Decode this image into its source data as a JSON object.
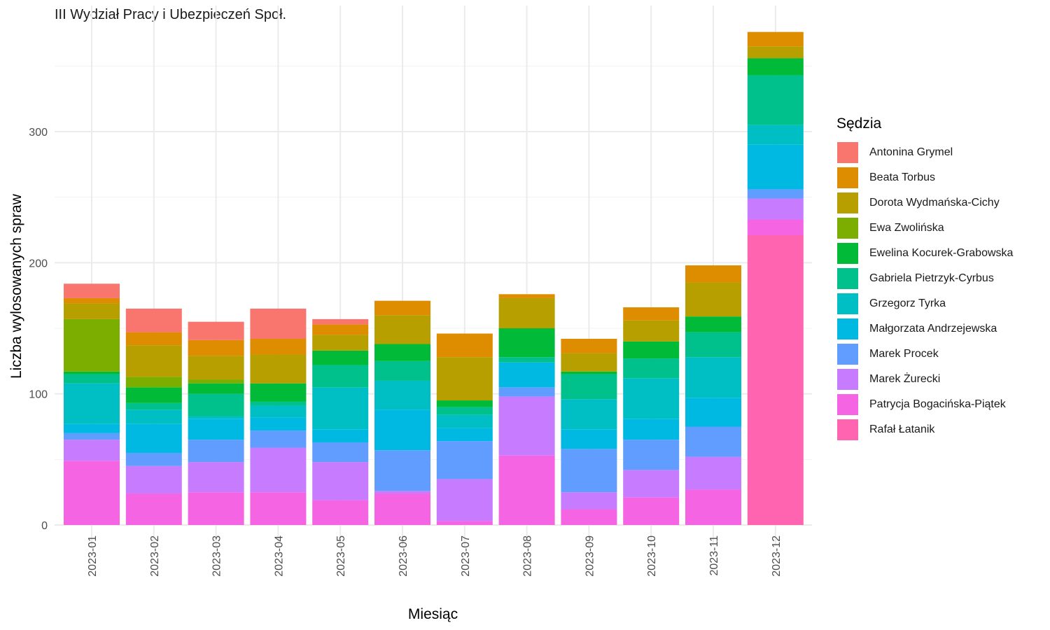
{
  "chart_data": {
    "type": "bar",
    "stacked": true,
    "title": "III Wydział Pracy i Ubezpieczeń Społ.",
    "xlabel": "Miesiąc",
    "ylabel": "Liczba wylosowanych spraw",
    "legend_title": "Sędzia",
    "legend_position": "right",
    "grid": true,
    "ylim": [
      0,
      385
    ],
    "yticks": [
      0,
      100,
      200,
      300
    ],
    "categories": [
      "2023-01",
      "2023-02",
      "2023-03",
      "2023-04",
      "2023-05",
      "2023-06",
      "2023-07",
      "2023-08",
      "2023-09",
      "2023-10",
      "2023-11",
      "2023-12"
    ],
    "series": [
      {
        "name": "Rafał Łatanik",
        "color": "#FF64B0",
        "values": [
          0,
          0,
          0,
          0,
          0,
          0,
          0,
          0,
          0,
          0,
          0,
          221
        ]
      },
      {
        "name": "Patrycja Bogacińska-Piątek",
        "color": "#F564E3",
        "values": [
          49,
          24,
          25,
          25,
          19,
          24,
          3,
          53,
          12,
          21,
          27,
          12
        ]
      },
      {
        "name": "Marek Żurecki",
        "color": "#C77CFF",
        "values": [
          16,
          21,
          23,
          34,
          29,
          2,
          32,
          45,
          13,
          21,
          25,
          16
        ]
      },
      {
        "name": "Marek Procek",
        "color": "#619CFF",
        "values": [
          5,
          10,
          17,
          13,
          15,
          31,
          29,
          7,
          33,
          23,
          23,
          7
        ]
      },
      {
        "name": "Małgorzata Andrzejewska",
        "color": "#00B9E3",
        "values": [
          7,
          22,
          16,
          10,
          10,
          31,
          10,
          19,
          15,
          16,
          22,
          34
        ]
      },
      {
        "name": "Grzegorz Tyrka",
        "color": "#00BFC4",
        "values": [
          31,
          11,
          2,
          9,
          32,
          22,
          10,
          0,
          23,
          31,
          31,
          15
        ]
      },
      {
        "name": "Gabriela Pietrzyk-Cyrbus",
        "color": "#00C08B",
        "values": [
          7,
          5,
          17,
          3,
          17,
          15,
          6,
          4,
          19,
          15,
          19,
          38
        ]
      },
      {
        "name": "Ewelina Kocurek-Grabowska",
        "color": "#00BA38",
        "values": [
          2,
          12,
          8,
          14,
          11,
          13,
          5,
          22,
          2,
          13,
          12,
          13
        ]
      },
      {
        "name": "Ewa Zwolińska",
        "color": "#7CAE00",
        "values": [
          40,
          8,
          3,
          0,
          0,
          0,
          0,
          0,
          0,
          0,
          0,
          0
        ]
      },
      {
        "name": "Dorota Wydmańska-Cichy",
        "color": "#B79F00",
        "values": [
          12,
          24,
          18,
          22,
          12,
          22,
          33,
          23,
          14,
          16,
          26,
          9
        ]
      },
      {
        "name": "Beata Torbus",
        "color": "#DE8C00",
        "values": [
          4,
          10,
          12,
          12,
          8,
          11,
          18,
          3,
          11,
          10,
          13,
          11
        ]
      },
      {
        "name": "Antonina Grymel",
        "color": "#F8766D",
        "values": [
          11,
          18,
          14,
          23,
          4,
          0,
          0,
          0,
          0,
          0,
          0,
          0
        ]
      }
    ],
    "legend_order": [
      "Antonina Grymel",
      "Beata Torbus",
      "Dorota Wydmańska-Cichy",
      "Ewa Zwolińska",
      "Ewelina Kocurek-Grabowska",
      "Gabriela Pietrzyk-Cyrbus",
      "Grzegorz Tyrka",
      "Małgorzata Andrzejewska",
      "Marek Procek",
      "Marek Żurecki",
      "Patrycja Bogacińska-Piątek",
      "Rafał Łatanik"
    ]
  }
}
